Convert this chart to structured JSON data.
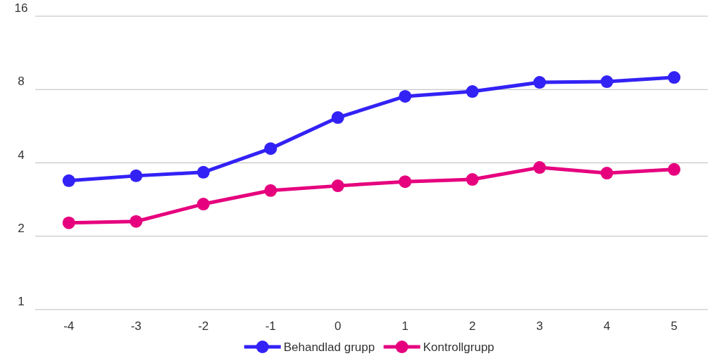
{
  "chart_data": {
    "type": "line",
    "categories": [
      "-4",
      "-3",
      "-2",
      "-1",
      "0",
      "1",
      "2",
      "3",
      "4",
      "5"
    ],
    "series": [
      {
        "name": "Behandlad grupp",
        "color": "#3322f5",
        "values": [
          3.38,
          3.54,
          3.66,
          4.58,
          6.14,
          7.5,
          7.85,
          8.56,
          8.62,
          8.97
        ]
      },
      {
        "name": "Kontrollgrupp",
        "color": "#e6007e",
        "values": [
          2.27,
          2.3,
          2.71,
          3.08,
          3.22,
          3.35,
          3.42,
          3.83,
          3.63,
          3.76
        ]
      }
    ],
    "log": "y",
    "ylim": [
      1,
      16
    ],
    "yticks": [
      1,
      2,
      4,
      8,
      16
    ],
    "grid": "y",
    "legend": "bottom",
    "marker": "circle",
    "line_style": "solid"
  }
}
